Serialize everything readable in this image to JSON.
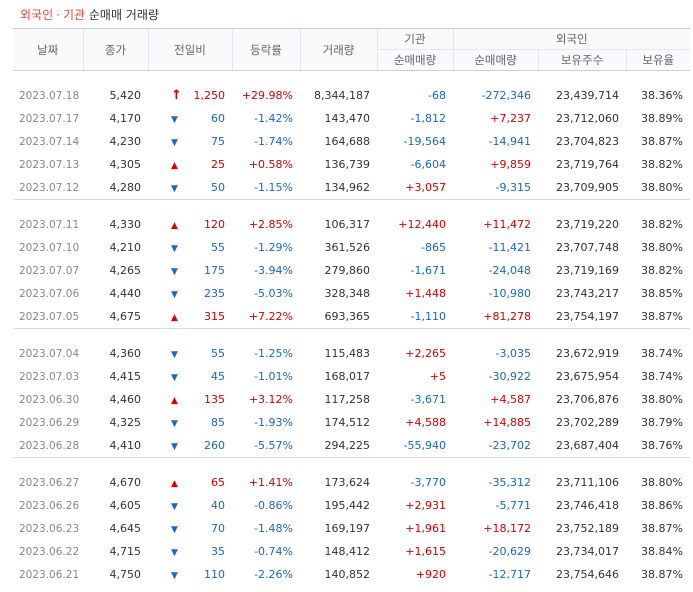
{
  "header": {
    "title_part1": "외국인",
    "title_dot": "·",
    "title_part2": "기관",
    "title_part3": "순매매 거래량"
  },
  "columns": {
    "date": "날짜",
    "close": "종가",
    "change": "전일비",
    "rate": "등락률",
    "volume": "거래량",
    "inst_group": "기관",
    "foreign_group": "외국인",
    "inst_net": "순매매량",
    "foreign_net": "순매매량",
    "foreign_hold": "보유주수",
    "foreign_ratio": "보유율"
  },
  "colors": {
    "up": "#d60000",
    "down": "#1a66c9"
  },
  "groups": [
    {
      "rows": [
        {
          "date": "2023.07.18",
          "close": "5,420",
          "dir": "upper",
          "change": "1,250",
          "rate": "+29.98%",
          "volume": "8,344,187",
          "inst": "-68",
          "foreign": "-272,346",
          "hold": "23,439,714",
          "ratio": "38.36%"
        },
        {
          "date": "2023.07.17",
          "close": "4,170",
          "dir": "down",
          "change": "60",
          "rate": "-1.42%",
          "volume": "143,470",
          "inst": "-1,812",
          "foreign": "+7,237",
          "hold": "23,712,060",
          "ratio": "38.89%"
        },
        {
          "date": "2023.07.14",
          "close": "4,230",
          "dir": "down",
          "change": "75",
          "rate": "-1.74%",
          "volume": "164,688",
          "inst": "-19,564",
          "foreign": "-14,941",
          "hold": "23,704,823",
          "ratio": "38.87%"
        },
        {
          "date": "2023.07.13",
          "close": "4,305",
          "dir": "up",
          "change": "25",
          "rate": "+0.58%",
          "volume": "136,739",
          "inst": "-6,604",
          "foreign": "+9,859",
          "hold": "23,719,764",
          "ratio": "38.82%"
        },
        {
          "date": "2023.07.12",
          "close": "4,280",
          "dir": "down",
          "change": "50",
          "rate": "-1.15%",
          "volume": "134,962",
          "inst": "+3,057",
          "foreign": "-9,315",
          "hold": "23,709,905",
          "ratio": "38.80%"
        }
      ]
    },
    {
      "rows": [
        {
          "date": "2023.07.11",
          "close": "4,330",
          "dir": "up",
          "change": "120",
          "rate": "+2.85%",
          "volume": "106,317",
          "inst": "+12,440",
          "foreign": "+11,472",
          "hold": "23,719,220",
          "ratio": "38.82%"
        },
        {
          "date": "2023.07.10",
          "close": "4,210",
          "dir": "down",
          "change": "55",
          "rate": "-1.29%",
          "volume": "361,526",
          "inst": "-865",
          "foreign": "-11,421",
          "hold": "23,707,748",
          "ratio": "38.80%"
        },
        {
          "date": "2023.07.07",
          "close": "4,265",
          "dir": "down",
          "change": "175",
          "rate": "-3.94%",
          "volume": "279,860",
          "inst": "-1,671",
          "foreign": "-24,048",
          "hold": "23,719,169",
          "ratio": "38.82%"
        },
        {
          "date": "2023.07.06",
          "close": "4,440",
          "dir": "down",
          "change": "235",
          "rate": "-5.03%",
          "volume": "328,348",
          "inst": "+1,448",
          "foreign": "-10,980",
          "hold": "23,743,217",
          "ratio": "38.85%"
        },
        {
          "date": "2023.07.05",
          "close": "4,675",
          "dir": "up",
          "change": "315",
          "rate": "+7.22%",
          "volume": "693,365",
          "inst": "-1,110",
          "foreign": "+81,278",
          "hold": "23,754,197",
          "ratio": "38.87%"
        }
      ]
    },
    {
      "rows": [
        {
          "date": "2023.07.04",
          "close": "4,360",
          "dir": "down",
          "change": "55",
          "rate": "-1.25%",
          "volume": "115,483",
          "inst": "+2,265",
          "foreign": "-3,035",
          "hold": "23,672,919",
          "ratio": "38.74%"
        },
        {
          "date": "2023.07.03",
          "close": "4,415",
          "dir": "down",
          "change": "45",
          "rate": "-1.01%",
          "volume": "168,017",
          "inst": "+5",
          "foreign": "-30,922",
          "hold": "23,675,954",
          "ratio": "38.74%"
        },
        {
          "date": "2023.06.30",
          "close": "4,460",
          "dir": "up",
          "change": "135",
          "rate": "+3.12%",
          "volume": "117,258",
          "inst": "-3,671",
          "foreign": "+4,587",
          "hold": "23,706,876",
          "ratio": "38.80%"
        },
        {
          "date": "2023.06.29",
          "close": "4,325",
          "dir": "down",
          "change": "85",
          "rate": "-1.93%",
          "volume": "174,512",
          "inst": "+4,588",
          "foreign": "+14,885",
          "hold": "23,702,289",
          "ratio": "38.79%"
        },
        {
          "date": "2023.06.28",
          "close": "4,410",
          "dir": "down",
          "change": "260",
          "rate": "-5.57%",
          "volume": "294,225",
          "inst": "-55,940",
          "foreign": "-23,702",
          "hold": "23,687,404",
          "ratio": "38.76%"
        }
      ]
    },
    {
      "rows": [
        {
          "date": "2023.06.27",
          "close": "4,670",
          "dir": "up",
          "change": "65",
          "rate": "+1.41%",
          "volume": "173,624",
          "inst": "-3,770",
          "foreign": "-35,312",
          "hold": "23,711,106",
          "ratio": "38.80%"
        },
        {
          "date": "2023.06.26",
          "close": "4,605",
          "dir": "down",
          "change": "40",
          "rate": "-0.86%",
          "volume": "195,442",
          "inst": "+2,931",
          "foreign": "-5,771",
          "hold": "23,746,418",
          "ratio": "38.86%"
        },
        {
          "date": "2023.06.23",
          "close": "4,645",
          "dir": "down",
          "change": "70",
          "rate": "-1.48%",
          "volume": "169,197",
          "inst": "+1,961",
          "foreign": "+18,172",
          "hold": "23,752,189",
          "ratio": "38.87%"
        },
        {
          "date": "2023.06.22",
          "close": "4,715",
          "dir": "down",
          "change": "35",
          "rate": "-0.74%",
          "volume": "148,412",
          "inst": "+1,615",
          "foreign": "-20,629",
          "hold": "23,734,017",
          "ratio": "38.84%"
        },
        {
          "date": "2023.06.21",
          "close": "4,750",
          "dir": "down",
          "change": "110",
          "rate": "-2.26%",
          "volume": "140,852",
          "inst": "+920",
          "foreign": "-12,717",
          "hold": "23,754,646",
          "ratio": "38.87%"
        }
      ]
    }
  ]
}
